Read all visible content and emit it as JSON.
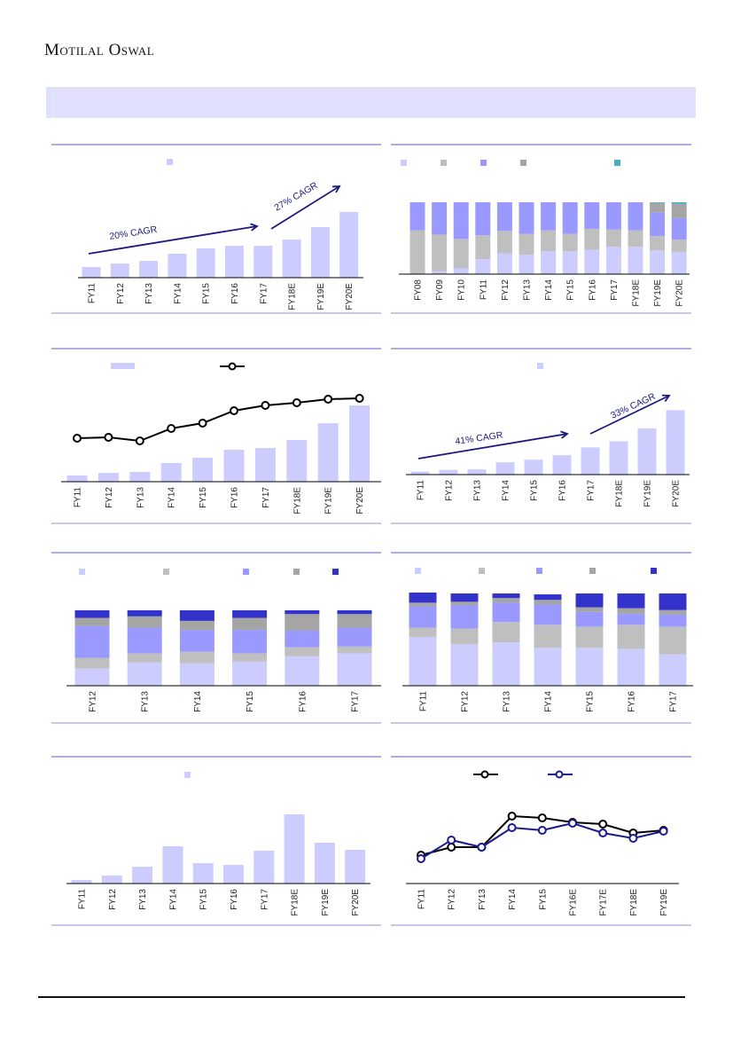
{
  "header": {
    "logo_text": "Motilal Oswal"
  },
  "colors": {
    "light": "#ccccff",
    "gray": "#bfbfbf",
    "blue": "#9999ff",
    "dark_gray": "#a5a5a5",
    "navy": "#3333cc",
    "teal": "#4bacc6",
    "line_black": "#000000",
    "line_blue": "#1a1a8c",
    "annotation": "#1a1a80",
    "rule_top": "#7f7cc4",
    "rule_bottom": "#aaa7d8"
  },
  "chart_data": [
    {
      "id": "c1",
      "type": "bar",
      "title": "",
      "xlabel": "",
      "ylabel": "",
      "categories": [
        "FY11",
        "FY12",
        "FY13",
        "FY14",
        "FY15",
        "FY16",
        "FY17",
        "FY18E",
        "FY19E",
        "FY20E"
      ],
      "values": [
        100,
        133,
        158,
        225,
        275,
        300,
        300,
        358,
        475,
        617
      ],
      "legend": [
        {
          "color_key": "light",
          "label": ""
        }
      ],
      "annotations": [
        "20% CAGR",
        "27% CAGR"
      ]
    },
    {
      "id": "c2",
      "type": "bar",
      "stacked": true,
      "unit": "%",
      "categories": [
        "FY08",
        "FY09",
        "FY10",
        "FY11",
        "FY12",
        "FY13",
        "FY14",
        "FY15",
        "FY16",
        "FY17",
        "FY18E",
        "FY19E",
        "FY20E"
      ],
      "series": [
        {
          "name": "",
          "color_key": "light",
          "values": [
            0,
            4,
            8,
            21,
            29,
            27,
            32,
            32,
            34,
            38,
            38,
            33,
            31
          ]
        },
        {
          "name": "",
          "color_key": "gray",
          "values": [
            61,
            51,
            41,
            33,
            31,
            29,
            29,
            24,
            29,
            24,
            23,
            20,
            17
          ]
        },
        {
          "name": "",
          "color_key": "blue",
          "values": [
            39,
            45,
            51,
            46,
            40,
            44,
            39,
            44,
            37,
            38,
            39,
            33,
            30
          ]
        },
        {
          "name": "",
          "color_key": "dark_gray",
          "values": [
            0,
            0,
            0,
            0,
            0,
            0,
            0,
            0,
            0,
            0,
            0,
            13,
            20
          ]
        },
        {
          "name": "",
          "color_key": "teal",
          "values": [
            0,
            0,
            0,
            0,
            0,
            0,
            0,
            0,
            0,
            0,
            0,
            1,
            2
          ]
        }
      ]
    },
    {
      "id": "c3",
      "type": "bar+line",
      "categories": [
        "FY11",
        "FY12",
        "FY13",
        "FY14",
        "FY15",
        "FY16",
        "FY17",
        "FY18E",
        "FY19E",
        "FY20E"
      ],
      "series": [
        {
          "name": "",
          "kind": "bar",
          "color_key": "light",
          "values": [
            7,
            10,
            11,
            21,
            27,
            36,
            38,
            47,
            66,
            86
          ]
        },
        {
          "name": "",
          "kind": "line",
          "color_key": "line_black",
          "values": [
            49,
            50,
            46,
            60,
            66,
            80,
            86,
            89,
            93,
            94
          ]
        }
      ]
    },
    {
      "id": "c4",
      "type": "bar",
      "categories": [
        "FY11",
        "FY12",
        "FY13",
        "FY14",
        "FY15",
        "FY16",
        "FY17",
        "FY18E",
        "FY19E",
        "FY20E"
      ],
      "values": [
        100,
        160,
        180,
        420,
        510,
        660,
        930,
        1140,
        1580,
        2200
      ],
      "legend": [
        {
          "color_key": "light",
          "label": ""
        }
      ],
      "annotations": [
        "41% CAGR",
        "33% CAGR"
      ]
    },
    {
      "id": "c5",
      "type": "bar",
      "stacked": true,
      "unit": "%",
      "categories": [
        "FY12",
        "FY13",
        "FY14",
        "FY15",
        "FY16",
        "FY17"
      ],
      "series": [
        {
          "name": "",
          "color_key": "light",
          "values": [
            23,
            31,
            30,
            32,
            39,
            43
          ]
        },
        {
          "name": "",
          "color_key": "gray",
          "values": [
            14,
            12,
            15,
            11,
            12,
            9
          ]
        },
        {
          "name": "",
          "color_key": "blue",
          "values": [
            42,
            34,
            29,
            31,
            22,
            25
          ]
        },
        {
          "name": "",
          "color_key": "dark_gray",
          "values": [
            11,
            15,
            12,
            16,
            22,
            18
          ]
        },
        {
          "name": "",
          "color_key": "navy",
          "values": [
            10,
            8,
            14,
            10,
            5,
            5
          ]
        }
      ]
    },
    {
      "id": "c6",
      "type": "bar",
      "stacked": true,
      "unit": "%",
      "categories": [
        "FY11",
        "FY12",
        "FY13",
        "FY14",
        "FY15",
        "FY16",
        "FY17"
      ],
      "series": [
        {
          "name": "",
          "color_key": "light",
          "values": [
            53,
            45,
            47,
            41,
            41,
            40,
            34
          ]
        },
        {
          "name": "",
          "color_key": "gray",
          "values": [
            10,
            17,
            22,
            25,
            23,
            26,
            30
          ]
        },
        {
          "name": "",
          "color_key": "blue",
          "values": [
            23,
            25,
            21,
            22,
            16,
            12,
            13
          ]
        },
        {
          "name": "",
          "color_key": "dark_gray",
          "values": [
            4,
            4,
            5,
            5,
            5,
            6,
            5
          ]
        },
        {
          "name": "",
          "color_key": "navy",
          "values": [
            11,
            9,
            5,
            6,
            15,
            16,
            18
          ]
        }
      ]
    },
    {
      "id": "c7",
      "type": "bar",
      "categories": [
        "FY11",
        "FY12",
        "FY13",
        "FY14",
        "FY15",
        "FY16",
        "FY17",
        "FY18E",
        "FY19E",
        "FY20E"
      ],
      "values": [
        4,
        9,
        19,
        42,
        23,
        21,
        37,
        78,
        46,
        38
      ],
      "legend": [
        {
          "color_key": "light",
          "label": ""
        }
      ]
    },
    {
      "id": "c8",
      "type": "line",
      "categories": [
        "FY11",
        "FY12",
        "FY13",
        "FY14",
        "FY15",
        "FY16E",
        "FY17E",
        "FY18E",
        "FY19E"
      ],
      "series": [
        {
          "name": "",
          "color_key": "line_black",
          "values": [
            32,
            41,
            41,
            76,
            74,
            69,
            67,
            57,
            60
          ]
        },
        {
          "name": "",
          "color_key": "line_blue",
          "values": [
            28,
            49,
            41,
            63,
            60,
            68,
            57,
            51,
            59
          ]
        }
      ]
    }
  ]
}
